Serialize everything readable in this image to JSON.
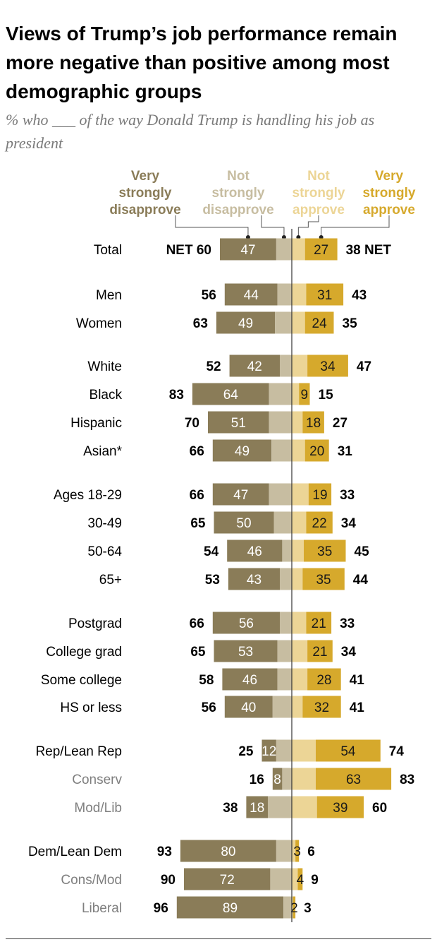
{
  "title": "Views of Trump’s job performance remain more negative than positive among most demographic groups",
  "subtitle": "% who ___ of the way Donald Trump is handling his job as president",
  "colors": {
    "very_strongly_disapprove": "#8a7c58",
    "not_strongly_disapprove": "#c7bda1",
    "not_strongly_approve": "#ecd596",
    "very_strongly_approve": "#d6a92c",
    "divider": "#333333",
    "sub_label": "#7f7f7f"
  },
  "chart_data": {
    "type": "bar",
    "orientation": "horizontal",
    "stacked": "diverging",
    "title": "Views of Trump’s job performance remain more negative than positive among most demographic groups",
    "subtitle": "% who ___ of the way Donald Trump is handling his job as president",
    "legend": [
      {
        "key": "very_strongly_disapprove",
        "lines": [
          "Very",
          "strongly",
          "disapprove"
        ]
      },
      {
        "key": "not_strongly_disapprove",
        "lines": [
          "Not",
          "strongly",
          "disapprove"
        ]
      },
      {
        "key": "not_strongly_approve",
        "lines": [
          "Not",
          "strongly",
          "approve"
        ]
      },
      {
        "key": "very_strongly_approve",
        "lines": [
          "Very",
          "strongly",
          "approve"
        ]
      }
    ],
    "net_tag": "NET",
    "rows": [
      {
        "label": "Total",
        "indent": false,
        "very_dis": 47,
        "not_dis": 13,
        "net_dis": 60,
        "not_app": 11,
        "very_app": 27,
        "net_app": 38,
        "show_net_tag": true
      },
      {
        "label": "Men",
        "indent": false,
        "very_dis": 44,
        "not_dis": 12,
        "net_dis": 56,
        "not_app": 12,
        "very_app": 31,
        "net_app": 43
      },
      {
        "label": "Women",
        "indent": false,
        "very_dis": 49,
        "not_dis": 14,
        "net_dis": 63,
        "not_app": 11,
        "very_app": 24,
        "net_app": 35
      },
      {
        "label": "White",
        "indent": false,
        "very_dis": 42,
        "not_dis": 10,
        "net_dis": 52,
        "not_app": 13,
        "very_app": 34,
        "net_app": 47
      },
      {
        "label": "Black",
        "indent": false,
        "very_dis": 64,
        "not_dis": 19,
        "net_dis": 83,
        "not_app": 6,
        "very_app": 9,
        "net_app": 15
      },
      {
        "label": "Hispanic",
        "indent": false,
        "very_dis": 51,
        "not_dis": 19,
        "net_dis": 70,
        "not_app": 9,
        "very_app": 18,
        "net_app": 27
      },
      {
        "label": "Asian*",
        "indent": false,
        "very_dis": 49,
        "not_dis": 17,
        "net_dis": 66,
        "not_app": 11,
        "very_app": 20,
        "net_app": 31
      },
      {
        "label": "Ages 18-29",
        "indent": false,
        "very_dis": 47,
        "not_dis": 19,
        "net_dis": 66,
        "not_app": 14,
        "very_app": 19,
        "net_app": 33
      },
      {
        "label": "30-49",
        "indent": false,
        "very_dis": 50,
        "not_dis": 15,
        "net_dis": 65,
        "not_app": 12,
        "very_app": 22,
        "net_app": 34
      },
      {
        "label": "50-64",
        "indent": false,
        "very_dis": 46,
        "not_dis": 8,
        "net_dis": 54,
        "not_app": 10,
        "very_app": 35,
        "net_app": 45
      },
      {
        "label": "65+",
        "indent": false,
        "very_dis": 43,
        "not_dis": 10,
        "net_dis": 53,
        "not_app": 9,
        "very_app": 35,
        "net_app": 44
      },
      {
        "label": "Postgrad",
        "indent": false,
        "very_dis": 56,
        "not_dis": 10,
        "net_dis": 66,
        "not_app": 12,
        "very_app": 21,
        "net_app": 33
      },
      {
        "label": "College grad",
        "indent": false,
        "very_dis": 53,
        "not_dis": 12,
        "net_dis": 65,
        "not_app": 13,
        "very_app": 21,
        "net_app": 34
      },
      {
        "label": "Some college",
        "indent": false,
        "very_dis": 46,
        "not_dis": 12,
        "net_dis": 58,
        "not_app": 13,
        "very_app": 28,
        "net_app": 41
      },
      {
        "label": "HS or less",
        "indent": false,
        "very_dis": 40,
        "not_dis": 16,
        "net_dis": 56,
        "not_app": 9,
        "very_app": 32,
        "net_app": 41
      },
      {
        "label": "Rep/Lean Rep",
        "indent": false,
        "very_dis": 12,
        "not_dis": 13,
        "net_dis": 25,
        "not_app": 20,
        "very_app": 54,
        "net_app": 74
      },
      {
        "label": "Conserv",
        "indent": true,
        "very_dis": 8,
        "not_dis": 8,
        "net_dis": 16,
        "not_app": 20,
        "very_app": 63,
        "net_app": 83
      },
      {
        "label": "Mod/Lib",
        "indent": true,
        "very_dis": 18,
        "not_dis": 20,
        "net_dis": 38,
        "not_app": 21,
        "very_app": 39,
        "net_app": 60
      },
      {
        "label": "Dem/Lean Dem",
        "indent": false,
        "very_dis": 80,
        "not_dis": 13,
        "net_dis": 93,
        "not_app": 3,
        "very_app": 3,
        "net_app": 6
      },
      {
        "label": "Cons/Mod",
        "indent": true,
        "very_dis": 72,
        "not_dis": 18,
        "net_dis": 90,
        "not_app": 5,
        "very_app": 4,
        "net_app": 9
      },
      {
        "label": "Liberal",
        "indent": true,
        "very_dis": 89,
        "not_dis": 7,
        "net_dis": 96,
        "not_app": 1,
        "very_app": 2,
        "net_app": 3
      }
    ]
  }
}
